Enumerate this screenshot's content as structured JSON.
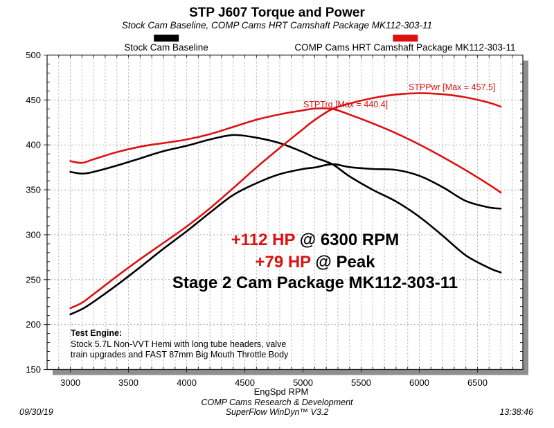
{
  "header": {
    "title": "STP J607 Torque and Power",
    "subtitle": "Stock Cam Baseline, COMP Cams HRT Camshaft Package MK112-303-11"
  },
  "legend": {
    "items": [
      {
        "label": "Stock Cam Baseline",
        "color": "#000000"
      },
      {
        "label": "COMP Cams HRT Camshaft Package MK112-303-11",
        "color": "#dd1111"
      }
    ]
  },
  "callouts": {
    "line1_highlight": "+112 HP",
    "line1_rest": " @ 6300 RPM",
    "line2_highlight": "+79 HP",
    "line2_rest": " @ Peak",
    "line3": "Stage 2 Cam Package MK112-303-11",
    "highlight_color": "#dd1111"
  },
  "test_engine": {
    "heading": "Test Engine:",
    "line1": "Stock 5.7L Non-VVT Hemi with long tube headers, valve",
    "line2": "train upgrades and FAST 87mm Big Mouth Throttle Body"
  },
  "footer": {
    "org": "COMP Cams Research & Development",
    "software": "SuperFlow WinDyn™ V3.2",
    "date": "09/30/19",
    "time": "13:38:46"
  },
  "chart_data": {
    "type": "line",
    "title": "STP J607 Torque and Power",
    "xlabel": "EngSpd RPM",
    "ylabel": "",
    "xlim": [
      2800,
      6890
    ],
    "ylim": [
      150,
      500
    ],
    "x_major_ticks": [
      3000,
      3500,
      4000,
      4500,
      5000,
      5500,
      6000,
      6500
    ],
    "x_minor_step": 100,
    "y_major_step": 50,
    "y_minor_step": 10,
    "grid": {
      "vertical_dashed_every_rpm": 100,
      "horizontal_dashed_every_units": 50,
      "color": "#ababab"
    },
    "legend_position": "top",
    "x": [
      3000,
      3100,
      3200,
      3400,
      3600,
      3800,
      4000,
      4200,
      4400,
      4600,
      4800,
      5000,
      5100,
      5252,
      5400,
      5600,
      5800,
      6000,
      6200,
      6400,
      6600,
      6700
    ],
    "series": [
      {
        "name": "Stock Cam Baseline STPTrq (lb-ft)",
        "color": "#000000",
        "values": [
          370,
          368,
          370,
          377,
          385,
          393,
          399,
          406,
          411,
          408,
          402,
          392,
          386,
          378.5,
          365,
          350,
          337,
          320,
          299,
          277,
          263,
          258
        ]
      },
      {
        "name": "Stock Cam Baseline STPPwr (HP)",
        "color": "#000000",
        "values": [
          211.3,
          217.2,
          225.4,
          244.0,
          263.9,
          284.4,
          303.9,
          324.6,
          344.3,
          357.4,
          367.4,
          373.2,
          374.8,
          378.5,
          375.3,
          373.2,
          372.1,
          365.6,
          353.0,
          337.6,
          330.4,
          329.1
        ]
      },
      {
        "name": "COMP Cams HRT MK112-303-11 STPTrq (lb-ft)",
        "color": "#dd1111",
        "values": [
          382,
          380,
          384,
          392,
          398,
          402,
          406,
          412,
          420,
          428,
          434,
          438.5,
          440.4,
          440,
          433.8,
          423.9,
          413,
          400.5,
          386.6,
          371.7,
          355.7,
          347
        ]
      },
      {
        "name": "COMP Cams HRT MK112-303-11 STPPwr (HP)",
        "color": "#dd1111",
        "values": [
          218.2,
          224.3,
          233.9,
          253.8,
          272.8,
          290.9,
          309.2,
          329.5,
          351.9,
          374.9,
          396.6,
          417.5,
          427.7,
          440.0,
          446.0,
          452.1,
          456.1,
          457.5,
          456.4,
          452.9,
          447.0,
          442.6
        ]
      }
    ],
    "curve_labels": [
      {
        "text": "STPTrq [Max = 440.4]",
        "color": "#dd1111"
      },
      {
        "text": "STPPwr [Max = 457.5]",
        "color": "#dd1111"
      }
    ],
    "peak_values": {
      "stptrq_max": 440.4,
      "stppwr_max": 457.5
    }
  }
}
